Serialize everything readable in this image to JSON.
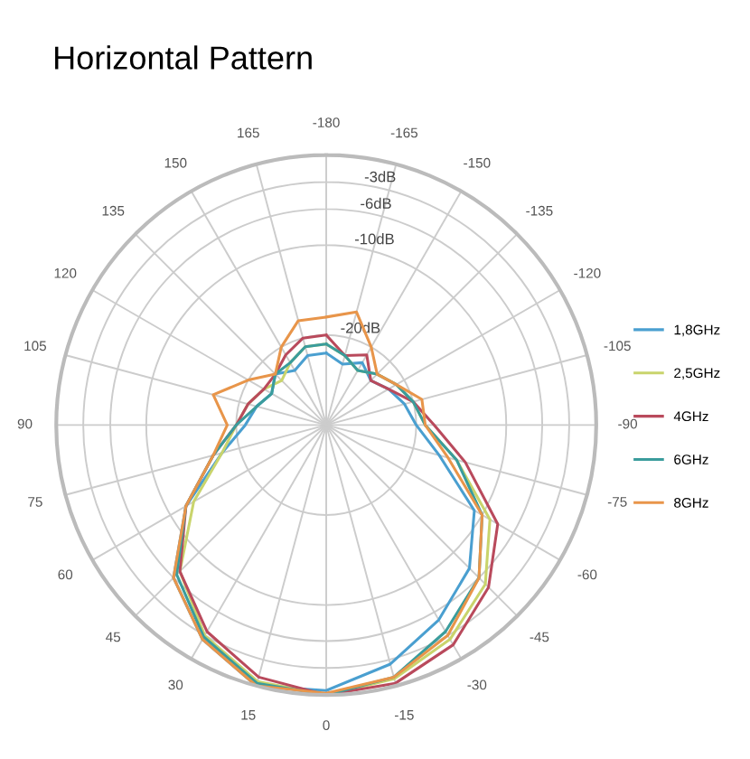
{
  "chart_data": {
    "type": "radar",
    "title": "Horizontal Pattern",
    "categories": [
      "-180",
      "-165",
      "-150",
      "-135",
      "-120",
      "-105",
      "-90",
      "-75",
      "-60",
      "-45",
      "-30",
      "-15",
      "0",
      "15",
      "30",
      "45",
      "60",
      "75",
      "90",
      "105",
      "120",
      "135",
      "150",
      "165"
    ],
    "series": [
      {
        "name": "1,8GHz",
        "color": "#4a9fd0",
        "values": [
          -22,
          -23,
          -22,
          -23,
          -22,
          -21,
          -20,
          -17,
          -11,
          -7.5,
          -5,
          -2.5,
          -0.5,
          0,
          -2.5,
          -6,
          -12,
          -18,
          -21,
          -22,
          -23,
          -22,
          -23,
          -22
        ]
      },
      {
        "name": "2,5GHz",
        "color": "#c9d46c",
        "values": [
          -21,
          -22,
          -23,
          -22,
          -21,
          -20,
          -19,
          -15,
          -9,
          -5,
          -2.5,
          -0.8,
          0,
          -0.5,
          -3,
          -7,
          -13,
          -18,
          -20,
          -21,
          -22,
          -23,
          -22,
          -21
        ]
      },
      {
        "name": "4GHz",
        "color": "#b94a5c",
        "values": [
          -20,
          -22,
          -21,
          -23,
          -22,
          -20,
          -18,
          -14,
          -8,
          -4.5,
          -1.8,
          -0.3,
          0,
          -1,
          -3.5,
          -7,
          -12,
          -17,
          -20,
          -21,
          -22,
          -22,
          -21,
          -20
        ]
      },
      {
        "name": "6GHz",
        "color": "#3a9c9c",
        "values": [
          -21,
          -22,
          -23,
          -22,
          -21,
          -20,
          -19,
          -15,
          -10,
          -6,
          -3.5,
          -1,
          0,
          -0.3,
          -2.8,
          -6.5,
          -12,
          -17,
          -20,
          -22,
          -23,
          -22,
          -22,
          -21
        ]
      },
      {
        "name": "8GHz",
        "color": "#e8954a",
        "values": [
          -18,
          -17,
          -20,
          -22,
          -21,
          -19,
          -19,
          -16,
          -10,
          -6,
          -3,
          -1,
          -0.2,
          0,
          -2.5,
          -6,
          -12,
          -17,
          -19,
          -17,
          -20,
          -22,
          -20,
          -18
        ]
      }
    ],
    "ylim": [
      -30,
      0
    ],
    "yticks": [
      {
        "value": -20,
        "label": "-20dB"
      },
      {
        "value": -10,
        "label": "-10dB"
      },
      {
        "value": -6,
        "label": "-6dB"
      },
      {
        "value": -3,
        "label": "-3dB"
      }
    ],
    "grid": true,
    "legend": "right",
    "marker": "none",
    "line_style": "solid"
  }
}
